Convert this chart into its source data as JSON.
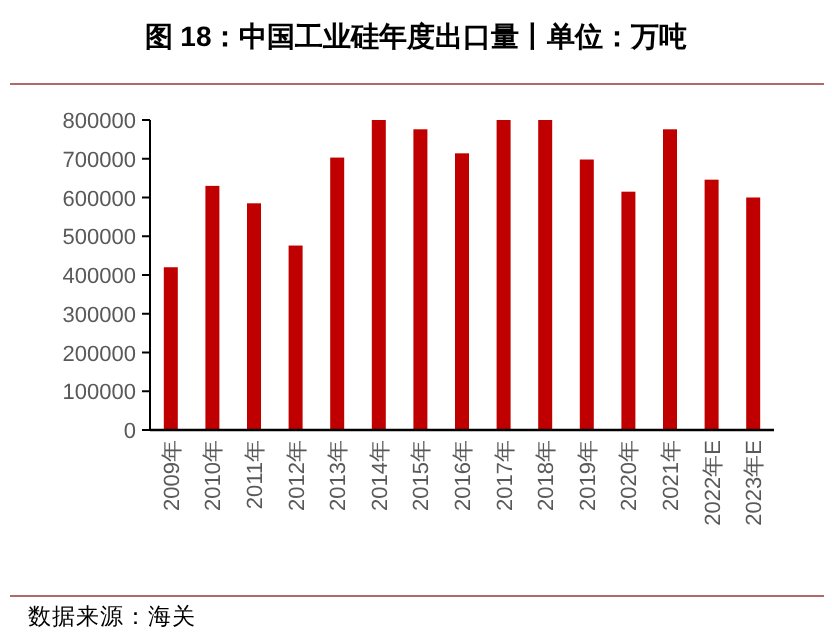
{
  "chart_data": {
    "type": "bar",
    "title": "图 18：中国工业硅年度出口量丨单位：万吨",
    "categories": [
      "2009年",
      "2010年",
      "2011年",
      "2012年",
      "2013年",
      "2014年",
      "2015年",
      "2016年",
      "2017年",
      "2018年",
      "2019年",
      "2020年",
      "2021年",
      "2022年E",
      "2023年E"
    ],
    "values": [
      420000,
      630000,
      585000,
      476000,
      703000,
      800000,
      776000,
      714000,
      800000,
      800000,
      698000,
      615000,
      776000,
      646000,
      600000
    ],
    "color": "#c00000",
    "ylim": [
      0,
      800000
    ],
    "yticks": [
      0,
      100000,
      200000,
      300000,
      400000,
      500000,
      600000,
      700000,
      800000
    ],
    "grid": false,
    "annotations": [
      "数据来源：海关"
    ]
  }
}
